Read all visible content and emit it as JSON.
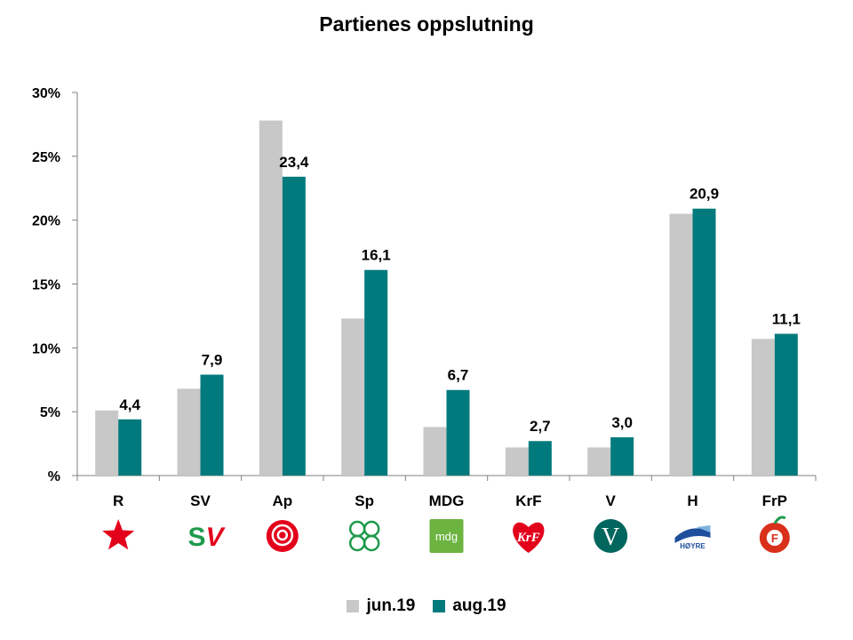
{
  "chart_data": {
    "type": "bar",
    "title": "Partienes oppslutning",
    "categories": [
      "R",
      "SV",
      "Ap",
      "Sp",
      "MDG",
      "KrF",
      "V",
      "H",
      "FrP"
    ],
    "series": [
      {
        "name": "jun.19",
        "color": "#c8c8c8",
        "values": [
          5.1,
          6.8,
          27.8,
          12.3,
          3.8,
          2.2,
          2.2,
          20.5,
          10.7
        ]
      },
      {
        "name": "aug.19",
        "color": "#007a7c",
        "values": [
          4.4,
          7.9,
          23.4,
          16.1,
          6.7,
          2.7,
          3.0,
          20.9,
          11.1
        ]
      }
    ],
    "data_labels": [
      "4,4",
      "7,9",
      "23,4",
      "16,1",
      "6,7",
      "2,7",
      "3,0",
      "20,9",
      "11,1"
    ],
    "y_ticks": [
      0,
      5,
      10,
      15,
      20,
      25,
      30
    ],
    "y_tick_labels": [
      "%",
      "5%",
      "10%",
      "15%",
      "20%",
      "25%",
      "30%"
    ],
    "ylim": [
      0,
      30
    ],
    "xlabel": "",
    "ylabel": "",
    "grid": false,
    "legend_position": "bottom",
    "party_logos": [
      "r-star-logo",
      "sv-logo",
      "ap-rose-logo",
      "sp-clover-logo",
      "mdg-logo",
      "krf-heart-logo",
      "v-logo",
      "hoyre-logo",
      "frp-apple-logo"
    ],
    "logo_texts": {
      "sv": "SV",
      "mdg": "mdg",
      "krf": "KrF",
      "v": "V",
      "hoyre": "HØYRE",
      "frp": "F"
    }
  }
}
